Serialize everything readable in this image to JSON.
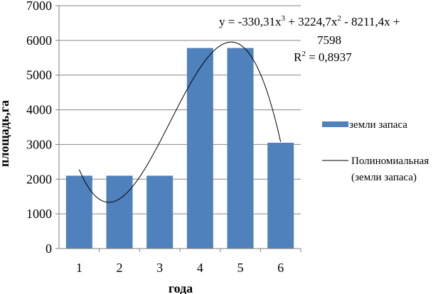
{
  "chart_data": {
    "type": "bar",
    "categories": [
      "1",
      "2",
      "3",
      "4",
      "5",
      "6"
    ],
    "series": [
      {
        "name": "земли запаса",
        "type": "bar",
        "color": "#4F81BD",
        "values": [
          2100,
          2100,
          2100,
          5780,
          5780,
          3050
        ]
      },
      {
        "name": "Полиномиальная (земли запаса)",
        "type": "trendline",
        "color": "#000000",
        "coefficients": [
          -330.31,
          3224.7,
          -8211.4,
          7598
        ]
      }
    ],
    "xlabel": "года",
    "ylabel": "площадь,га",
    "ylim": [
      0,
      7000
    ],
    "yticks": [
      "0",
      "1000",
      "2000",
      "3000",
      "4000",
      "5000",
      "6000",
      "7000"
    ],
    "grid": true,
    "legend": "right",
    "legend_entries": [
      "земли запаса",
      "Полиномиальная",
      "(земли запаса)"
    ],
    "annotation": {
      "equation_line1": "y = -330,31x",
      "equation_sup1": "3",
      "equation_part2": " + 3224,7x",
      "equation_sup2": "2",
      "equation_part3": " - 8211,4x +",
      "equation_line2": "7598",
      "r2_prefix": "R",
      "r2_sup": "2",
      "r2_value": " = 0,8937"
    }
  }
}
